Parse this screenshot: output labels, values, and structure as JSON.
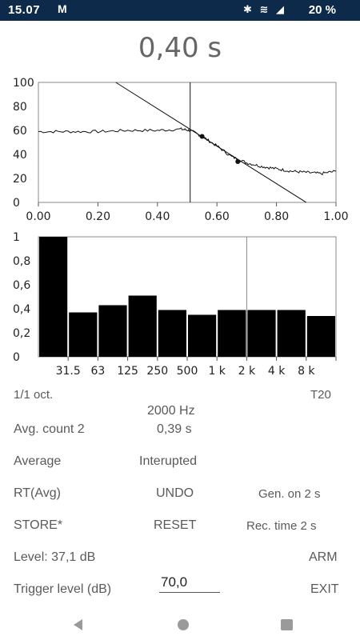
{
  "status_bar": {
    "time": "15.07",
    "gmail_icon": "M",
    "icons": "✱ ≋ ◢",
    "battery": "20 %"
  },
  "reverb_time_display": "0,40 s",
  "decay_chart": {
    "y_ticks": [
      "100",
      "80",
      "60",
      "40",
      "20",
      "0"
    ],
    "x_ticks": [
      "0.00",
      "0.20",
      "0.40",
      "0.60",
      "0.80",
      "1.00"
    ],
    "ylim": [
      0,
      100
    ],
    "xlim": [
      0,
      1.0
    ]
  },
  "chart_data": [
    {
      "type": "line",
      "xlim": [
        0,
        1.0
      ],
      "ylim": [
        0,
        100
      ],
      "grid": false,
      "cursor_x": 0.51,
      "marker_points": [
        {
          "x": 0.55,
          "y": 55
        },
        {
          "x": 0.67,
          "y": 34
        }
      ],
      "regression_line": [
        {
          "x": 0.26,
          "y": 100
        },
        {
          "x": 0.9,
          "y": 0
        }
      ],
      "decay_curve": [
        {
          "x": 0.0,
          "y": 59
        },
        {
          "x": 0.1,
          "y": 59
        },
        {
          "x": 0.2,
          "y": 59
        },
        {
          "x": 0.3,
          "y": 60
        },
        {
          "x": 0.4,
          "y": 60
        },
        {
          "x": 0.48,
          "y": 61
        },
        {
          "x": 0.51,
          "y": 60
        },
        {
          "x": 0.55,
          "y": 55
        },
        {
          "x": 0.6,
          "y": 47
        },
        {
          "x": 0.65,
          "y": 38
        },
        {
          "x": 0.7,
          "y": 33
        },
        {
          "x": 0.75,
          "y": 30
        },
        {
          "x": 0.8,
          "y": 28
        },
        {
          "x": 0.85,
          "y": 26
        },
        {
          "x": 0.9,
          "y": 25
        },
        {
          "x": 0.95,
          "y": 24
        },
        {
          "x": 1.0,
          "y": 26
        }
      ]
    },
    {
      "type": "bar",
      "categories": [
        "",
        "31.5",
        "63",
        "125",
        "250",
        "500",
        "1 k",
        "2 k",
        "4 k",
        "8 k"
      ],
      "values": [
        1.0,
        0.37,
        0.43,
        0.51,
        0.39,
        0.35,
        0.39,
        0.39,
        0.39,
        0.34
      ],
      "ylim": [
        0,
        1
      ],
      "y_ticks": [
        "1",
        "0,8",
        "0,6",
        "0,4",
        "0,2",
        "0"
      ],
      "selected_band": "2 k"
    }
  ],
  "band_labels": [
    "31.5",
    "63",
    "125",
    "250",
    "500",
    "1 k",
    "2 k",
    "4 k",
    "8 k"
  ],
  "info": {
    "octave": "1/1 oct.",
    "t_mode": "T20",
    "frequency": "2000 Hz",
    "avg_count": "Avg. count 2",
    "avg_value": "0,39 s"
  },
  "controls": {
    "average": "Average",
    "interrupted": "Interupted",
    "rt_avg": "RT(Avg)",
    "undo": "UNDO",
    "gen_on": "Gen. on 2 s",
    "store": "STORE*",
    "reset": "RESET",
    "rec_time": "Rec. time 2 s",
    "level": "Level: 37,1 dB",
    "arm": "ARM",
    "trigger_label": "Trigger level (dB)",
    "trigger_value": "70,0",
    "exit": "EXIT"
  },
  "colors": {
    "status_bar": "#0d2a4a",
    "bars": "#000000",
    "text": "#5a5a5a"
  }
}
